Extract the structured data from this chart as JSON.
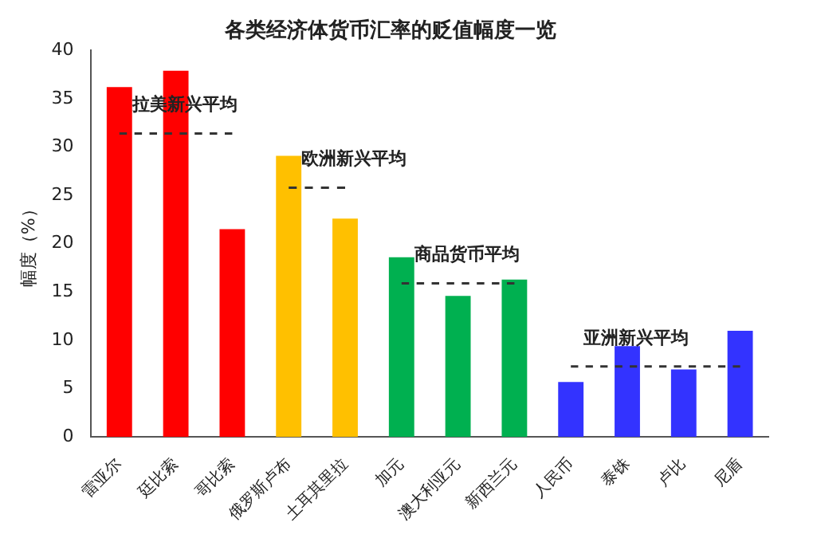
{
  "chart_data": {
    "type": "bar",
    "title": "各类经济体货币汇率的贬值幅度一览",
    "ylabel": "幅度（%）",
    "categories": [
      "雷亚尔",
      "廷比索",
      "哥比索",
      "俄罗斯卢布",
      "土耳其里拉",
      "加元",
      "澳大利亚元",
      "新西兰元",
      "人民币",
      "泰铢",
      "卢比",
      "尼盾"
    ],
    "series": [
      {
        "colors": [
          "#ff0000",
          "#ff0000",
          "#ff0000",
          "#ffc000",
          "#ffc000",
          "#00b050",
          "#00b050",
          "#00b050",
          "#3333ff",
          "#3333ff",
          "#3333ff",
          "#3333ff"
        ],
        "values": [
          36.2,
          37.9,
          21.5,
          29.1,
          22.6,
          18.6,
          14.6,
          16.3,
          5.7,
          9.4,
          7.0,
          11.0
        ]
      },
      {
        "type": "line",
        "name": "拉美新兴平均",
        "color": "#333333",
        "line_style": "dashed",
        "values": [
          31.4,
          31.4,
          31.4,
          null,
          null,
          null,
          null,
          null,
          null,
          null,
          null,
          null
        ]
      },
      {
        "type": "line",
        "name": "欧洲新兴平均",
        "color": "#333333",
        "line_style": "dashed",
        "values": [
          null,
          null,
          null,
          25.8,
          25.8,
          null,
          null,
          null,
          null,
          null,
          null,
          null
        ]
      },
      {
        "type": "line",
        "name": "商品货币平均",
        "color": "#333333",
        "line_style": "dashed",
        "values": [
          null,
          null,
          null,
          null,
          null,
          15.9,
          15.9,
          15.9,
          null,
          null,
          null,
          null
        ]
      },
      {
        "type": "line",
        "name": "亚洲新兴平均",
        "color": "#333333",
        "line_style": "dashed",
        "values": [
          null,
          null,
          null,
          null,
          null,
          null,
          null,
          null,
          7.3,
          7.3,
          7.3,
          7.3
        ]
      }
    ],
    "ylim": [
      0,
      40
    ],
    "yticks": [
      0,
      5,
      10,
      15,
      20,
      25,
      30,
      35,
      40
    ],
    "grid": false,
    "legend": false,
    "marker": "none"
  }
}
